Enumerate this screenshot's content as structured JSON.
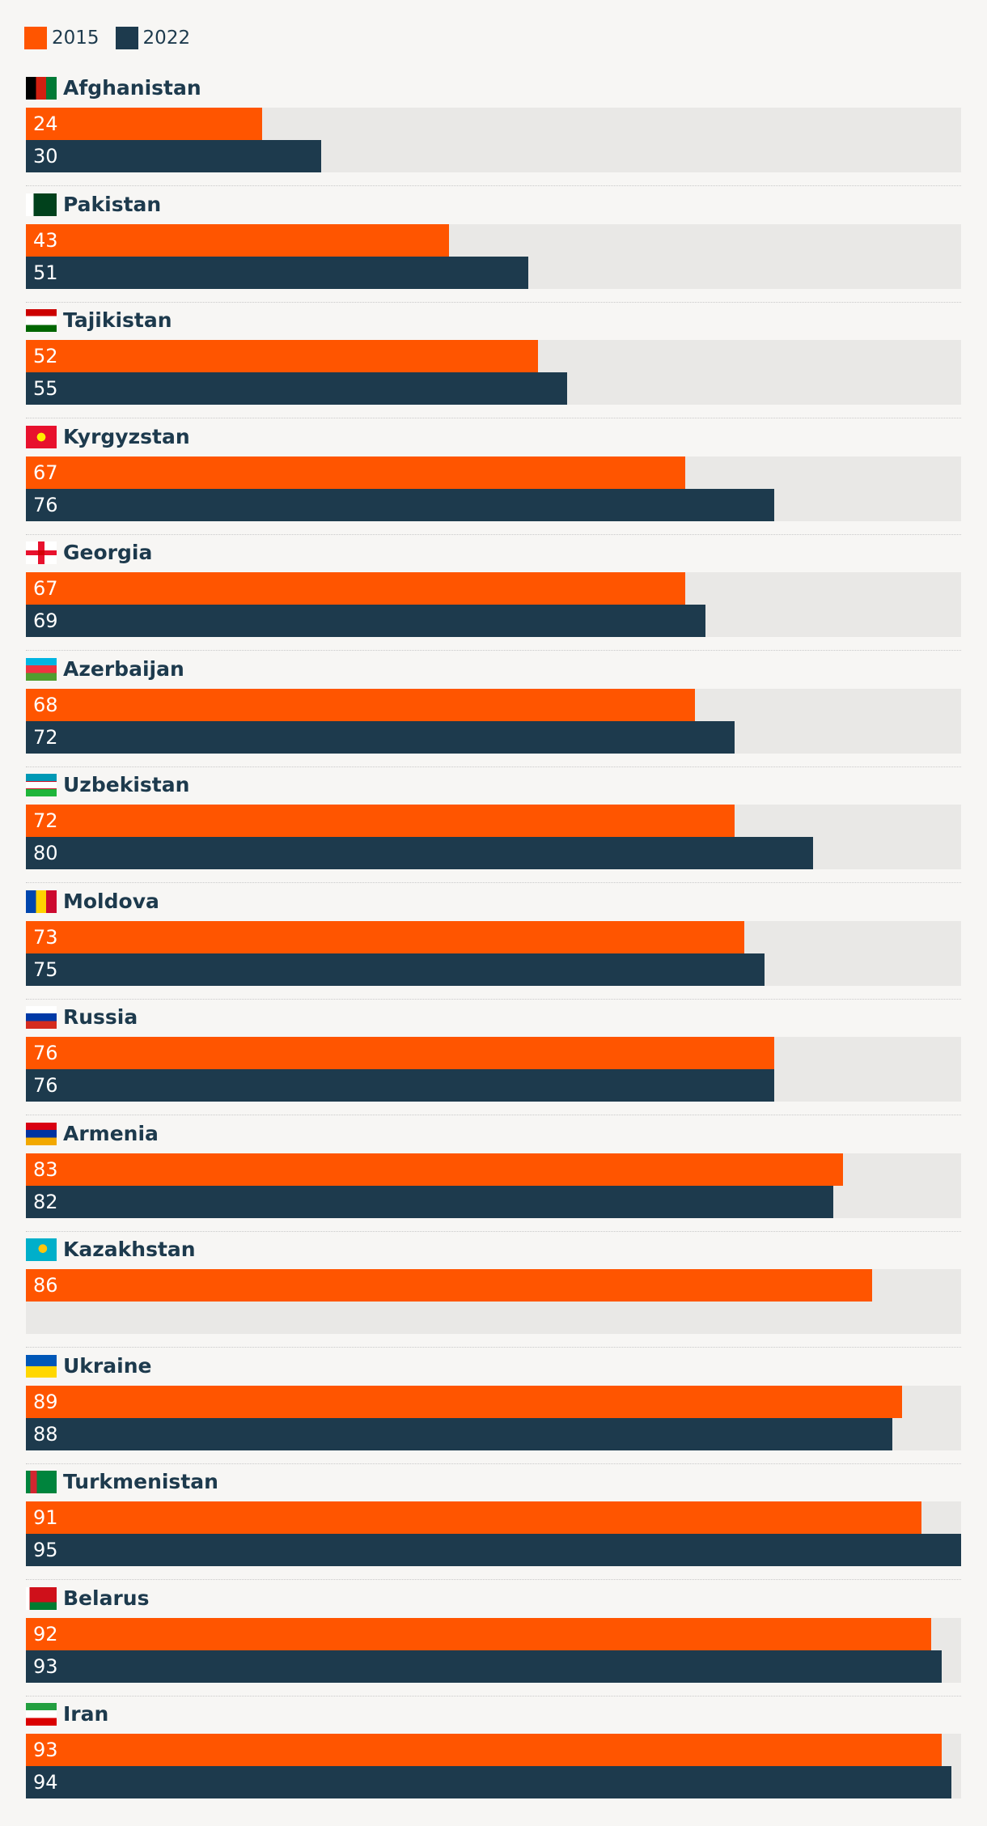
{
  "legend": [
    {
      "label": "2015",
      "color": "#ff5500"
    },
    {
      "label": "2022",
      "color": "#1d3a4d"
    }
  ],
  "chart_data": {
    "type": "bar",
    "orientation": "horizontal",
    "xlim": [
      0,
      95
    ],
    "grid": false,
    "legend_placement": "top-left",
    "categories": [
      "Afghanistan",
      "Pakistan",
      "Tajikistan",
      "Kyrgyzstan",
      "Georgia",
      "Azerbaijan",
      "Uzbekistan",
      "Moldova",
      "Russia",
      "Armenia",
      "Kazakhstan",
      "Ukraine",
      "Turkmenistan",
      "Belarus",
      "Iran"
    ],
    "series": [
      {
        "name": "2015",
        "color": "#ff5500",
        "values": [
          24,
          43,
          52,
          67,
          67,
          68,
          72,
          73,
          76,
          83,
          86,
          89,
          91,
          92,
          93
        ]
      },
      {
        "name": "2022",
        "color": "#1d3a4d",
        "values": [
          30,
          51,
          55,
          76,
          69,
          72,
          80,
          75,
          76,
          82,
          null,
          88,
          95,
          93,
          94
        ]
      }
    ],
    "flag_icons": [
      "afghanistan-flag-icon",
      "pakistan-flag-icon",
      "tajikistan-flag-icon",
      "kyrgyzstan-flag-icon",
      "georgia-flag-icon",
      "azerbaijan-flag-icon",
      "uzbekistan-flag-icon",
      "moldova-flag-icon",
      "russia-flag-icon",
      "armenia-flag-icon",
      "kazakhstan-flag-icon",
      "ukraine-flag-icon",
      "turkmenistan-flag-icon",
      "belarus-flag-icon",
      "iran-flag-icon"
    ]
  }
}
